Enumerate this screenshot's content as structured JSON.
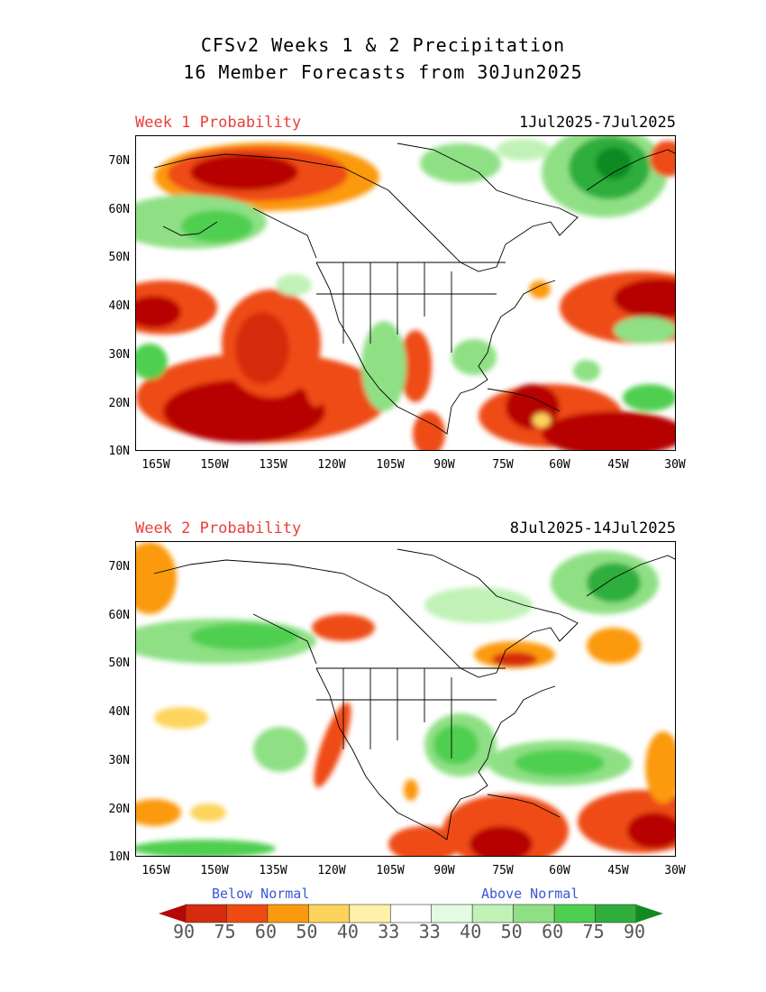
{
  "title": {
    "line1": "CFSv2 Weeks 1 & 2 Precipitation",
    "line2": "16 Member Forecasts from 30Jun2025"
  },
  "panels": [
    {
      "label": "Week 1 Probability",
      "dates": "1Jul2025-7Jul2025"
    },
    {
      "label": "Week 2 Probability",
      "dates": "8Jul2025-14Jul2025"
    }
  ],
  "axes": {
    "lat_labels": [
      "70N",
      "60N",
      "50N",
      "40N",
      "30N",
      "20N",
      "10N"
    ],
    "lon_labels": [
      "165W",
      "150W",
      "135W",
      "120W",
      "105W",
      "90W",
      "75W",
      "60W",
      "45W",
      "30W"
    ]
  },
  "legend": {
    "below_label": "Below Normal",
    "above_label": "Above Normal",
    "values": [
      "90",
      "75",
      "60",
      "50",
      "40",
      "33",
      "33",
      "40",
      "50",
      "60",
      "75",
      "90"
    ],
    "colors": [
      "#b70606",
      "#d62b0c",
      "#ee4b12",
      "#fb9a0e",
      "#fdd45b",
      "#fff2a8",
      "#ffffff",
      "#e3fbe1",
      "#c0f2b7",
      "#8fe085",
      "#4fcf4f",
      "#2fae3c",
      "#118a22"
    ]
  }
}
